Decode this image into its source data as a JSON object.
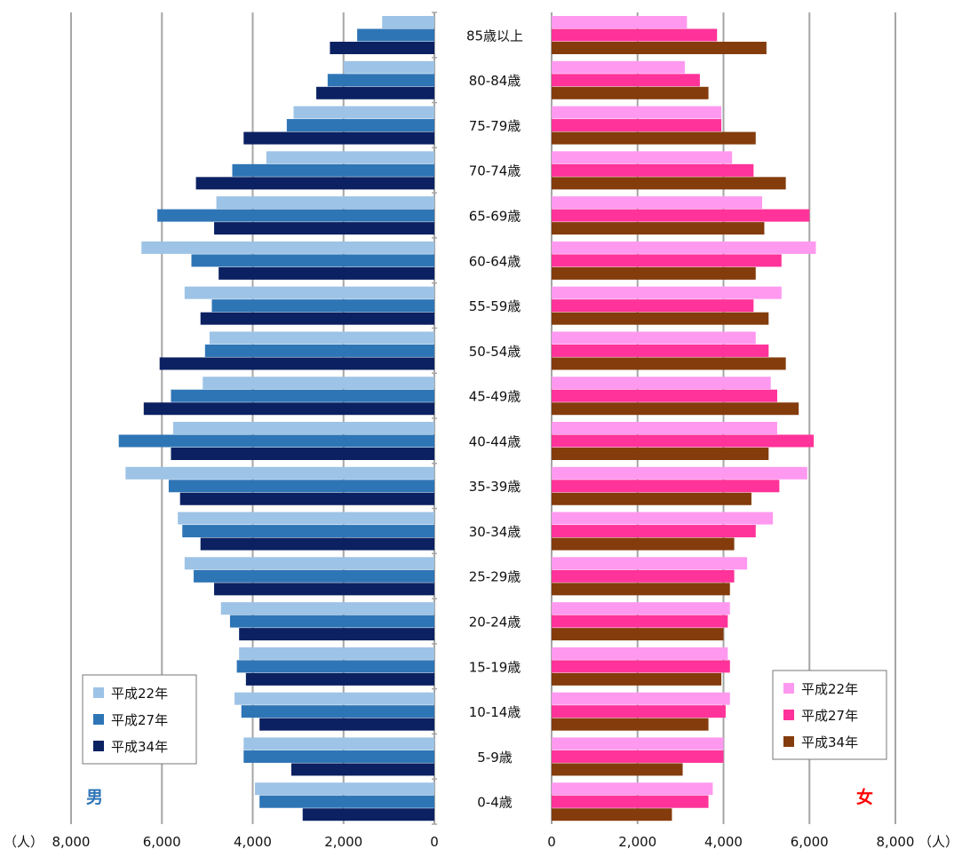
{
  "colors": {
    "male": [
      "#9DC3E6",
      "#2E75B6",
      "#0B2162"
    ],
    "female": [
      "#FF99F0",
      "#FF3399",
      "#843C0C"
    ],
    "grid": "#A6A6A6",
    "male_label": "#2E75B6",
    "female_label": "#FF0000"
  },
  "chart_data": {
    "type": "bar",
    "orientation": "horizontal",
    "layout": "population-pyramid",
    "unit_label_left": "（人）",
    "unit_label_right": "（人）",
    "male_label": "男",
    "female_label": "女",
    "categories": [
      "85歳以上",
      "80-84歳",
      "75-79歳",
      "70-74歳",
      "65-69歳",
      "60-64歳",
      "55-59歳",
      "50-54歳",
      "45-49歳",
      "40-44歳",
      "35-39歳",
      "30-34歳",
      "25-29歳",
      "20-24歳",
      "15-19歳",
      "10-14歳",
      "5-9歳",
      "0-4歳"
    ],
    "male": {
      "xlim": [
        0,
        8000
      ],
      "ticks": [
        8000,
        6000,
        4000,
        2000,
        0
      ],
      "tick_labels": [
        "8,000",
        "6,000",
        "4,000",
        "2,000",
        "0"
      ],
      "series": [
        {
          "name": "平成22年",
          "values": [
            1150,
            2000,
            3100,
            3700,
            4800,
            6450,
            5500,
            4950,
            5100,
            5750,
            6800,
            5650,
            5500,
            4700,
            4300,
            4400,
            4200,
            3950
          ]
        },
        {
          "name": "平成27年",
          "values": [
            1700,
            2350,
            3250,
            4450,
            6100,
            5350,
            4900,
            5050,
            5800,
            6950,
            5850,
            5550,
            5300,
            4500,
            4350,
            4250,
            4200,
            3850
          ]
        },
        {
          "name": "平成34年",
          "values": [
            2300,
            2600,
            4200,
            5250,
            4850,
            4750,
            5150,
            6050,
            6400,
            5800,
            5600,
            5150,
            4850,
            4300,
            4150,
            3850,
            3150,
            2900
          ]
        }
      ]
    },
    "female": {
      "xlim": [
        0,
        8000
      ],
      "ticks": [
        0,
        2000,
        4000,
        6000,
        8000
      ],
      "tick_labels": [
        "0",
        "2,000",
        "4,000",
        "6,000",
        "8,000"
      ],
      "series": [
        {
          "name": "平成22年",
          "values": [
            3150,
            3100,
            3950,
            4200,
            4900,
            6150,
            5350,
            4750,
            5100,
            5250,
            5950,
            5150,
            4550,
            4150,
            4100,
            4150,
            4000,
            3750
          ]
        },
        {
          "name": "平成27年",
          "values": [
            3850,
            3450,
            3950,
            4700,
            6000,
            5350,
            4700,
            5050,
            5250,
            6100,
            5300,
            4750,
            4250,
            4100,
            4150,
            4050,
            4000,
            3650
          ]
        },
        {
          "name": "平成34年",
          "values": [
            5000,
            3650,
            4750,
            5450,
            4950,
            4750,
            5050,
            5450,
            5750,
            5050,
            4650,
            4250,
            4150,
            4000,
            3950,
            3650,
            3050,
            2800
          ]
        }
      ]
    },
    "legend_placement": "lower-left and lower-right inside plot",
    "grid": true
  }
}
